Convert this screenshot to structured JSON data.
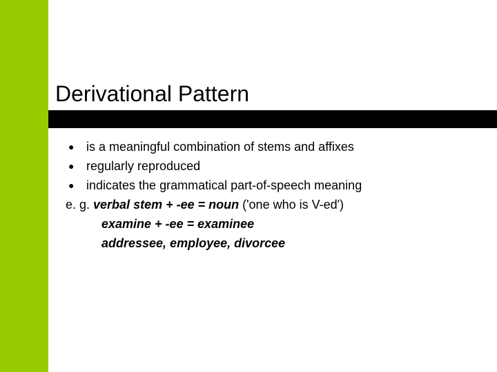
{
  "slide": {
    "title": "Derivational Pattern",
    "bullets": [
      "is a meaningful combination of stems and affixes",
      "regularly reproduced",
      "indicates the grammatical part-of-speech meaning"
    ],
    "example_prefix": "e. g. ",
    "example_bold_1": "verbal stem + -ee = noun",
    "example_paren": " ('one who is    V-ed')",
    "example_line2": "examine + -ee = examinee",
    "example_line3": "addressee, employee, divorcee"
  },
  "colors": {
    "accent": "#99cc00",
    "bar": "#000000",
    "background": "#ffffff",
    "text": "#000000"
  }
}
